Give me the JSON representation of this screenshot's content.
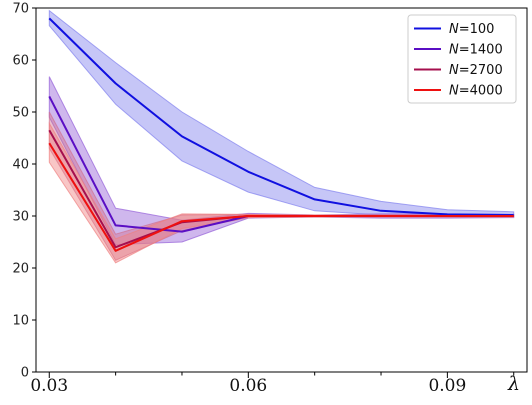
{
  "chart_data": {
    "type": "line",
    "xlabel": "λ",
    "ylabel": "",
    "xlim": [
      0.028,
      0.102
    ],
    "ylim": [
      0,
      70
    ],
    "yticks": [
      0,
      10,
      20,
      30,
      40,
      50,
      60,
      70
    ],
    "xticks_major": [
      0.03,
      0.06,
      0.09
    ],
    "xticks_minor": [
      0.04,
      0.05,
      0.07,
      0.08,
      0.1
    ],
    "x": [
      0.03,
      0.04,
      0.05,
      0.06,
      0.07,
      0.08,
      0.09,
      0.1
    ],
    "grid": false,
    "legend_position": "top-right",
    "legend_n_prefix": "N",
    "series": [
      {
        "name": "=100",
        "color": "#1010e0",
        "band_color": "#8080ee",
        "values": [
          68,
          55.5,
          45.3,
          38.5,
          33.2,
          31,
          30.3,
          30.2
        ],
        "lower": [
          66.6,
          51.5,
          40.6,
          34.6,
          31,
          30.2,
          29.8,
          29.9
        ],
        "upper": [
          69.5,
          59.5,
          50,
          42.4,
          35.5,
          32.8,
          31.2,
          30.8
        ]
      },
      {
        "name": "=1400",
        "color": "#5a0ec4",
        "band_color": "#9460d8",
        "values": [
          53,
          28.2,
          27,
          30,
          30,
          30,
          30,
          30
        ],
        "lower": [
          49,
          24.5,
          25,
          29.6,
          29.8,
          29.6,
          29.6,
          29.7
        ],
        "upper": [
          56.8,
          31.5,
          29.2,
          30.5,
          30.2,
          30.4,
          30.4,
          30.3
        ]
      },
      {
        "name": "=2700",
        "color": "#a50f4e",
        "band_color": "#d07090",
        "values": [
          46.5,
          24,
          28.8,
          30,
          30,
          30,
          30,
          30
        ],
        "lower": [
          43,
          21.5,
          27.2,
          29.7,
          29.8,
          29.8,
          29.8,
          29.8
        ],
        "upper": [
          50,
          26.5,
          30.2,
          30.3,
          30.2,
          30.2,
          30.2,
          30.2
        ]
      },
      {
        "name": "=4000",
        "color": "#ee1010",
        "band_color": "#f08080",
        "values": [
          44,
          23.3,
          29,
          30,
          30,
          30,
          30,
          30
        ],
        "lower": [
          40.3,
          21,
          27.6,
          29.7,
          29.8,
          29.8,
          29.8,
          29.8
        ],
        "upper": [
          47.8,
          25.6,
          30.4,
          30.3,
          30.2,
          30.2,
          30.2,
          30.2
        ]
      }
    ]
  }
}
